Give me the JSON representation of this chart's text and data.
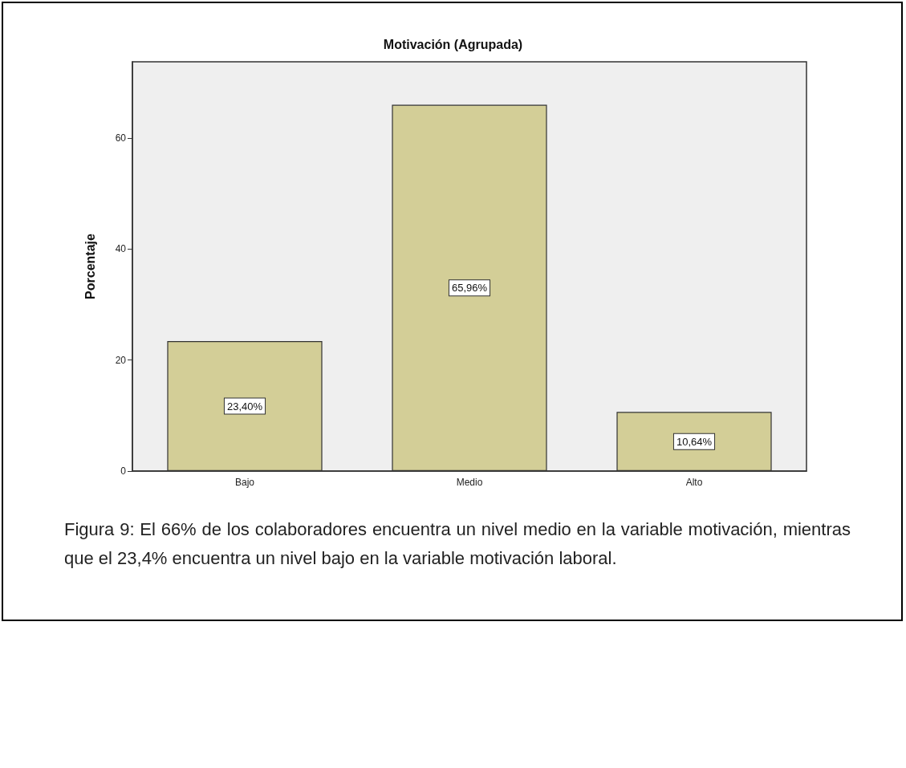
{
  "chart_data": {
    "type": "bar",
    "title": "Motivación (Agrupada)",
    "ylabel": "Porcentaje",
    "categories": [
      "Bajo",
      "Medio",
      "Alto"
    ],
    "values": [
      23.4,
      65.96,
      10.64
    ],
    "value_labels": [
      "23,40%",
      "65,96%",
      "10,64%"
    ],
    "color": "#d3ce97",
    "ylim": [
      0,
      73.7
    ],
    "yticks": [
      0,
      20,
      40,
      60
    ],
    "grid": false,
    "annotations": [
      "Figura 9: El 66% de los colaboradores encuentra un nivel medio en la variable motivación, mientras que el 23,4% encuentra un nivel bajo en la variable motivación laboral."
    ]
  }
}
